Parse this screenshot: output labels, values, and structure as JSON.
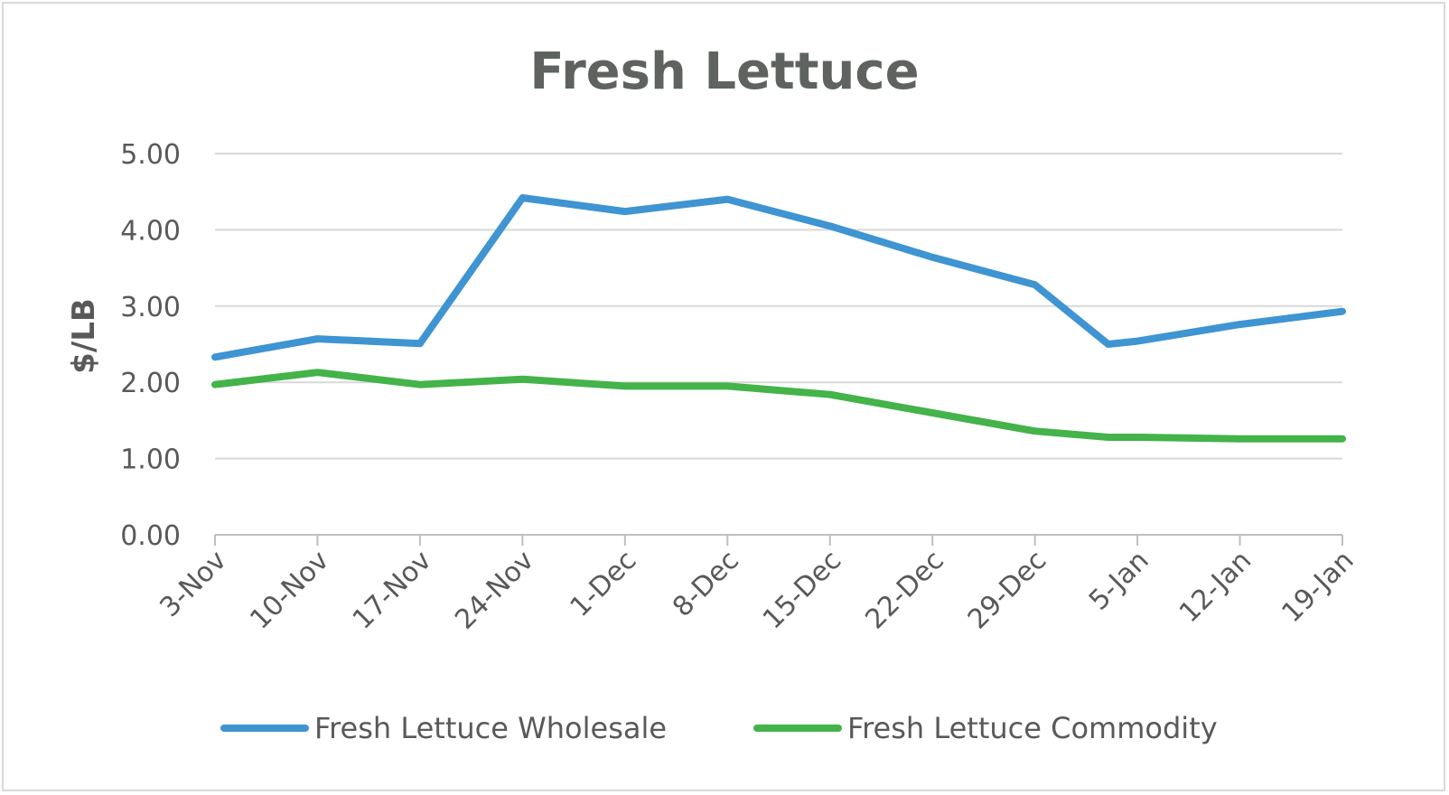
{
  "chart_data": {
    "type": "line",
    "title": "Fresh Lettuce",
    "xlabel": "",
    "ylabel": "$/LB",
    "ylim": [
      0,
      5
    ],
    "y_ticks": [
      "0.00",
      "1.00",
      "2.00",
      "3.00",
      "4.00",
      "5.00"
    ],
    "categories": [
      "3-Nov",
      "10-Nov",
      "17-Nov",
      "24-Nov",
      "1-Dec",
      "8-Dec",
      "15-Dec",
      "22-Dec",
      "29-Dec",
      "5-Jan",
      "12-Jan",
      "19-Jan"
    ],
    "grid": true,
    "legend_position": "bottom",
    "series": [
      {
        "name": "Fresh Lettuce Wholesale",
        "color": "#3f94d2",
        "x": [
          "3-Nov",
          "10-Nov",
          "17-Nov",
          "24-Nov",
          "1-Dec",
          "8-Dec",
          "15-Dec",
          "22-Dec",
          "29-Dec",
          "3-Jan",
          "5-Jan",
          "12-Jan",
          "19-Jan"
        ],
        "values": [
          2.33,
          2.57,
          2.51,
          4.42,
          4.24,
          4.4,
          4.05,
          3.64,
          3.28,
          2.5,
          2.54,
          2.76,
          2.93
        ]
      },
      {
        "name": "Fresh Lettuce Commodity",
        "color": "#43b34a",
        "x": [
          "3-Nov",
          "10-Nov",
          "17-Nov",
          "24-Nov",
          "1-Dec",
          "8-Dec",
          "15-Dec",
          "22-Dec",
          "29-Dec",
          "3-Jan",
          "5-Jan",
          "12-Jan",
          "19-Jan"
        ],
        "values": [
          1.97,
          2.13,
          1.97,
          2.04,
          1.95,
          1.95,
          1.84,
          1.6,
          1.36,
          1.28,
          1.28,
          1.26,
          1.26
        ]
      }
    ]
  }
}
